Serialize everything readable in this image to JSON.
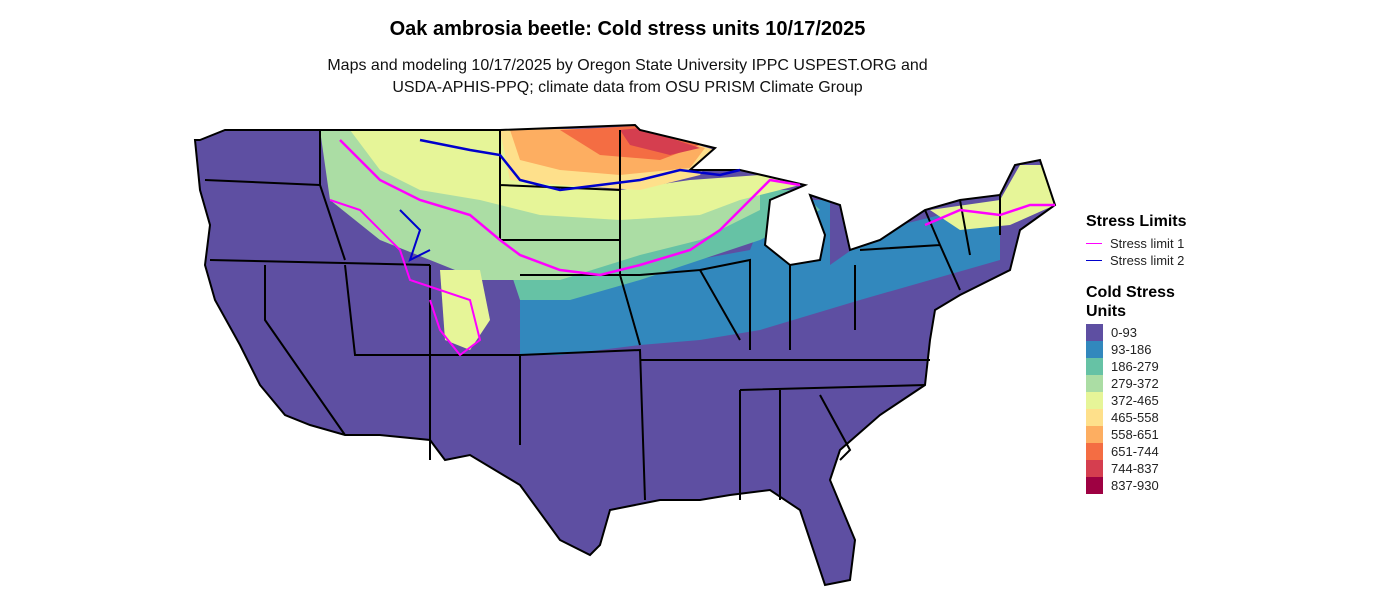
{
  "title": "Oak ambrosia beetle: Cold stress units 10/17/2025",
  "subtitle_line1": "Maps and modeling 10/17/2025 by Oregon State University IPPC USPEST.ORG and",
  "subtitle_line2": "USDA-APHIS-PPQ; climate data from OSU PRISM Climate Group",
  "legend": {
    "stress_title": "Stress Limits",
    "stress_items": [
      {
        "label": "Stress limit 1",
        "color": "#FF00FF"
      },
      {
        "label": "Stress limit 2",
        "color": "#0000CC"
      }
    ],
    "units_title_line1": "Cold Stress",
    "units_title_line2": "Units",
    "bins": [
      {
        "label": "0-93",
        "color": "#5E4FA2"
      },
      {
        "label": "93-186",
        "color": "#3288BD"
      },
      {
        "label": "186-279",
        "color": "#66C2A5"
      },
      {
        "label": "279-372",
        "color": "#ABDDA4"
      },
      {
        "label": "372-465",
        "color": "#E6F598"
      },
      {
        "label": "465-558",
        "color": "#FEE08B"
      },
      {
        "label": "558-651",
        "color": "#FDAE61"
      },
      {
        "label": "651-744",
        "color": "#F46D43"
      },
      {
        "label": "744-837",
        "color": "#D53E4F"
      },
      {
        "label": "837-930",
        "color": "#9E0142"
      }
    ]
  }
}
